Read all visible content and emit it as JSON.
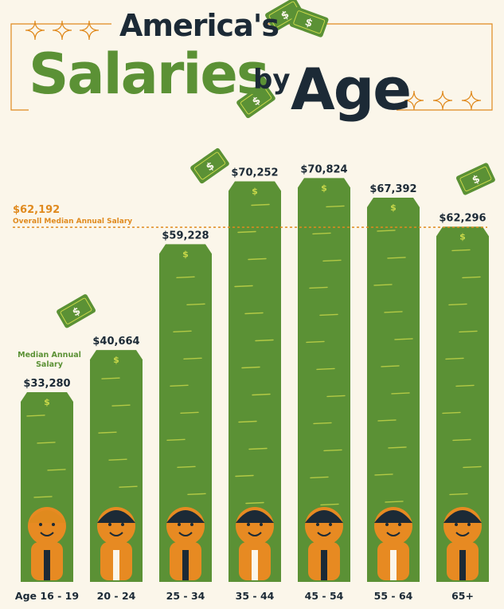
{
  "title": {
    "line1": "America's",
    "line2": "Salaries",
    "line3": "by",
    "line4": "Age"
  },
  "overall": {
    "value_label": "$62,192",
    "label": "Overall Median Annual Salary",
    "value": 62192
  },
  "median_label": "Median Annual Salary",
  "colors": {
    "bar": "#5b9135",
    "bar_stripe": "#c9d84a",
    "accent": "#e08a1e",
    "dark": "#1c2a36",
    "background": "#fbf6ea"
  },
  "chart_data": {
    "type": "bar",
    "title": "America's Salaries by Age",
    "categories": [
      "Age 16 - 19",
      "20 - 24",
      "25 - 34",
      "35 - 44",
      "45 - 54",
      "55 - 64",
      "65+"
    ],
    "values": [
      33280,
      40664,
      59228,
      70252,
      70824,
      67392,
      62296
    ],
    "value_labels": [
      "$33,280",
      "$40,664",
      "$59,228",
      "$70,252",
      "$70,824",
      "$67,392",
      "$62,296"
    ],
    "series": [
      {
        "name": "Median Annual Salary",
        "values": [
          33280,
          40664,
          59228,
          70252,
          70824,
          67392,
          62296
        ]
      }
    ],
    "reference_line": {
      "label": "Overall Median Annual Salary",
      "value": 62192
    },
    "ylim": [
      0,
      72000
    ],
    "grid": false,
    "xlabel": "",
    "ylabel": ""
  }
}
